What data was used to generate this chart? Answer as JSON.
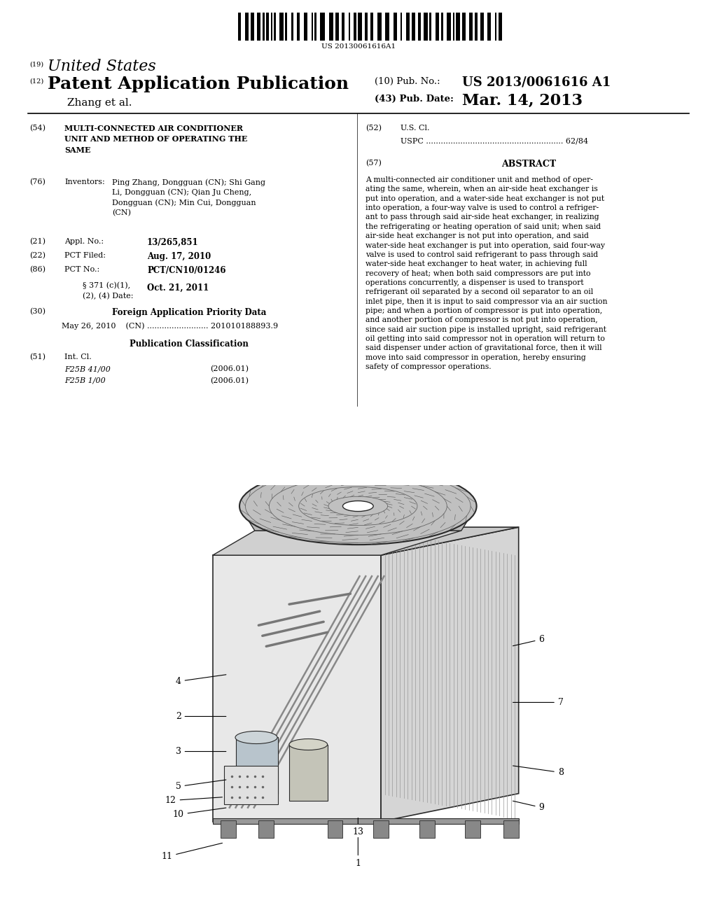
{
  "background_color": "#ffffff",
  "barcode_text": "US 20130061616A1",
  "header_19_sup": "(19)",
  "header_19_text": "United States",
  "header_12_sup": "(12)",
  "header_12_text": "Patent Application Publication",
  "header_author": "Zhang et al.",
  "header_10_label": "(10) Pub. No.:",
  "header_10_val": "US 2013/0061616 A1",
  "header_43_label": "(43) Pub. Date:",
  "header_43_val": "Mar. 14, 2013",
  "field_54_label": "(54)",
  "field_54_text": "MULTI-CONNECTED AIR CONDITIONER\nUNIT AND METHOD OF OPERATING THE\nSAME",
  "field_76_label": "(76)",
  "field_76_name": "Inventors:",
  "field_76_text_bold": [
    "Ping Zhang",
    "Shi Gang\nLi",
    "Qian Ju Cheng",
    "Min Cui"
  ],
  "field_76_text": "Ping Zhang, Dongguan (CN); Shi Gang\nLi, Dongguan (CN); Qian Ju Cheng,\nDongguan (CN); Min Cui, Dongguan\n(CN)",
  "field_21_label": "(21)",
  "field_21_name": "Appl. No.:",
  "field_21_val": "13/265,851",
  "field_22_label": "(22)",
  "field_22_name": "PCT Filed:",
  "field_22_val": "Aug. 17, 2010",
  "field_86_label": "(86)",
  "field_86_name": "PCT No.:",
  "field_86_val": "PCT/CN10/01246",
  "field_86b_text": "§ 371 (c)(1),\n(2), (4) Date:",
  "field_86b_val": "Oct. 21, 2011",
  "field_30_label": "(30)",
  "field_30_title": "Foreign Application Priority Data",
  "field_30_data": "May 26, 2010    (CN) ......................... 201010188893.9",
  "field_pub_class_title": "Publication Classification",
  "field_51_label": "(51)",
  "field_51_name": "Int. Cl.",
  "field_51_line1": "F25B 41/00",
  "field_51_line1_year": "(2006.01)",
  "field_51_line2": "F25B 1/00",
  "field_51_line2_year": "(2006.01)",
  "field_52_label": "(52)",
  "field_52_name": "U.S. Cl.",
  "field_52_data": "USPC ........................................................ 62/84",
  "field_57_label": "(57)",
  "field_57_title": "ABSTRACT",
  "abstract_text": "A multi-connected air conditioner unit and method of oper-\nating the same, wherein, when an air-side heat exchanger is\nput into operation, and a water-side heat exchanger is not put\ninto operation, a four-way valve is used to control a refriger-\nant to pass through said air-side heat exchanger, in realizing\nthe refrigerating or heating operation of said unit; when said\nair-side heat exchanger is not put into operation, and said\nwater-side heat exchanger is put into operation, said four-way\nvalve is used to control said refrigerant to pass through said\nwater-side heat exchanger to heat water, in achieving full\nrecovery of heat; when both said compressors are put into\noperations concurrently, a dispenser is used to transport\nrefrigerant oil separated by a second oil separator to an oil\ninlet pipe, then it is input to said compressor via an air suction\npipe; and when a portion of compressor is put into operation,\nand another portion of compressor is not put into operation,\nsince said air suction pipe is installed upright, said refrigerant\noil getting into said compressor not in operation will return to\nsaid dispenser under action of gravitational force, then it will\nmove into said compressor in operation, hereby ensuring\nsafety of compressor operations."
}
